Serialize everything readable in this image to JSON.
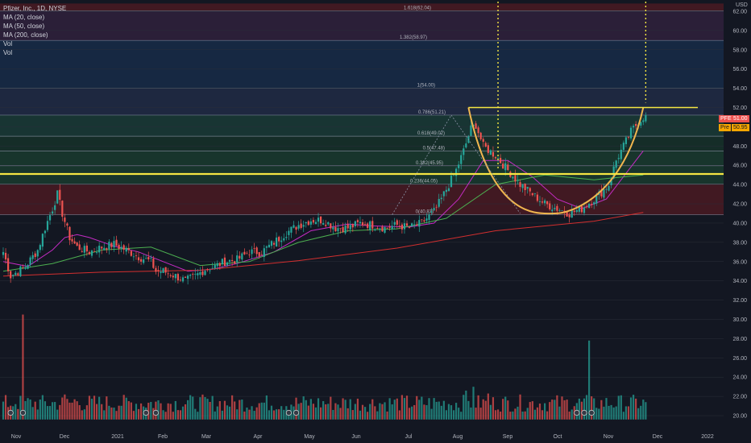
{
  "legend": {
    "title": "Pfizer, Inc., 1D, NYSE",
    "indicators": [
      "MA (20, close)",
      "MA (50, close)",
      "MA (200, close)",
      "Vol",
      "Vol"
    ]
  },
  "axis": {
    "currency": "USD",
    "y_ticks": [
      "62.00",
      "60.00",
      "58.00",
      "56.00",
      "54.00",
      "52.00",
      "50.00",
      "48.00",
      "46.00",
      "44.00",
      "42.00",
      "40.00",
      "38.00",
      "36.00",
      "34.00",
      "32.00",
      "30.00",
      "28.00",
      "26.00",
      "24.00",
      "22.00",
      "20.00"
    ],
    "x_ticks": [
      "Nov",
      "Dec",
      "2021",
      "Feb",
      "Mar",
      "Apr",
      "May",
      "Jun",
      "Jul",
      "Aug",
      "Sep",
      "Oct",
      "Nov",
      "Dec",
      "2022"
    ]
  },
  "badges": {
    "symbol": "PFE",
    "last_price": "51.00",
    "pre_label": "Pre",
    "pre_price": "50.95"
  },
  "colors": {
    "background": "#131722",
    "up": "#26a69a",
    "down": "#ef5350",
    "ma20": "#c42bc4",
    "ma50": "#4caf50",
    "ma200": "#d32f2f",
    "pattern": "#f0b64f",
    "resistance": "#f5e642",
    "event_marker": "#d8d8d8"
  },
  "chart_data": {
    "type": "candlestick",
    "symbol": "PFE",
    "interval": "1D",
    "ylim": [
      19.0,
      63.0
    ],
    "fib_levels": [
      {
        "label": "0(40.87)",
        "value": 40.87
      },
      {
        "label": "0.236(44.05)",
        "value": 44.05
      },
      {
        "label": "0.382(45.95)",
        "value": 45.95
      },
      {
        "label": "0.5(47.48)",
        "value": 47.48
      },
      {
        "label": "0.618(49.02)",
        "value": 49.02
      },
      {
        "label": "0.786(51.21)",
        "value": 51.21
      },
      {
        "label": "1(54.00)",
        "value": 54.0
      },
      {
        "label": "1.382(58.97)",
        "value": 58.97
      },
      {
        "label": "1.618(62.04)",
        "value": 62.04
      }
    ],
    "horizontal_lines": [
      45.1,
      52.0
    ],
    "price_anchors": [
      [
        0,
        37.0
      ],
      [
        3,
        34.5
      ],
      [
        6,
        35.0
      ],
      [
        9,
        35.5
      ],
      [
        14,
        37.2
      ],
      [
        17,
        39.5
      ],
      [
        20,
        41.5
      ],
      [
        22,
        43.0
      ],
      [
        24,
        41.0
      ],
      [
        27,
        38.5
      ],
      [
        30,
        37.5
      ],
      [
        35,
        37.0
      ],
      [
        40,
        37.5
      ],
      [
        45,
        37.8
      ],
      [
        50,
        37.2
      ],
      [
        55,
        36.5
      ],
      [
        60,
        36.0
      ],
      [
        62,
        35.0
      ],
      [
        65,
        35.0
      ],
      [
        70,
        34.5
      ],
      [
        74,
        34.0
      ],
      [
        78,
        34.5
      ],
      [
        82,
        35.2
      ],
      [
        86,
        35.5
      ],
      [
        90,
        36.0
      ],
      [
        95,
        36.2
      ],
      [
        100,
        37.0
      ],
      [
        105,
        37.0
      ],
      [
        110,
        38.0
      ],
      [
        115,
        39.0
      ],
      [
        120,
        39.8
      ],
      [
        125,
        40.3
      ],
      [
        130,
        40.3
      ],
      [
        135,
        39.5
      ],
      [
        140,
        39.5
      ],
      [
        145,
        40.0
      ],
      [
        150,
        39.8
      ],
      [
        155,
        39.5
      ],
      [
        160,
        39.8
      ],
      [
        165,
        39.5
      ],
      [
        170,
        40.0
      ],
      [
        175,
        41.2
      ],
      [
        178,
        42.5
      ],
      [
        181,
        44.0
      ],
      [
        184,
        45.5
      ],
      [
        187,
        47.5
      ],
      [
        190,
        49.8
      ],
      [
        192,
        50.2
      ],
      [
        195,
        48.0
      ],
      [
        200,
        47.0
      ],
      [
        205,
        45.5
      ],
      [
        210,
        44.0
      ],
      [
        215,
        43.0
      ],
      [
        220,
        42.0
      ],
      [
        225,
        41.5
      ],
      [
        230,
        41.0
      ],
      [
        235,
        41.5
      ],
      [
        240,
        42.5
      ],
      [
        243,
        43.2
      ],
      [
        246,
        44.0
      ],
      [
        249,
        46.5
      ],
      [
        252,
        48.0
      ],
      [
        255,
        49.5
      ],
      [
        258,
        50.5
      ],
      [
        260,
        51.0
      ]
    ],
    "moving_averages": {
      "ma20": [
        [
          0,
          36.0
        ],
        [
          10,
          35.5
        ],
        [
          20,
          37.2
        ],
        [
          25,
          38.5
        ],
        [
          30,
          38.8
        ],
        [
          35,
          38.5
        ],
        [
          45,
          37.6
        ],
        [
          55,
          37.0
        ],
        [
          65,
          36.0
        ],
        [
          75,
          35.0
        ],
        [
          85,
          35.2
        ],
        [
          95,
          35.8
        ],
        [
          110,
          37.0
        ],
        [
          125,
          39.2
        ],
        [
          140,
          39.9
        ],
        [
          150,
          39.7
        ],
        [
          165,
          39.6
        ],
        [
          175,
          40.0
        ],
        [
          185,
          42.5
        ],
        [
          195,
          46.5
        ],
        [
          205,
          46.5
        ],
        [
          215,
          44.8
        ],
        [
          225,
          42.5
        ],
        [
          235,
          41.5
        ],
        [
          245,
          42.5
        ],
        [
          260,
          47.5
        ]
      ],
      "ma50": [
        [
          0,
          35.0
        ],
        [
          20,
          35.8
        ],
        [
          40,
          37.2
        ],
        [
          60,
          37.5
        ],
        [
          80,
          35.6
        ],
        [
          100,
          36.0
        ],
        [
          120,
          38.0
        ],
        [
          140,
          39.2
        ],
        [
          160,
          39.4
        ],
        [
          180,
          40.5
        ],
        [
          200,
          44.0
        ],
        [
          220,
          45.0
        ],
        [
          240,
          44.5
        ],
        [
          260,
          45.0
        ]
      ],
      "ma200": [
        [
          0,
          34.5
        ],
        [
          40,
          34.9
        ],
        [
          80,
          35.1
        ],
        [
          120,
          36.1
        ],
        [
          160,
          37.4
        ],
        [
          200,
          39.2
        ],
        [
          240,
          40.2
        ],
        [
          260,
          41.1
        ]
      ]
    },
    "volume": {
      "baseline_price": 19.6,
      "spikes": [
        [
          8,
          30.5
        ],
        [
          238,
          27.8
        ],
        [
          191,
          23.0
        ],
        [
          197,
          22.3
        ],
        [
          25,
          22.2
        ],
        [
          29,
          21.7
        ],
        [
          188,
          22.6
        ],
        [
          240,
          21.8
        ],
        [
          5,
          21.2
        ]
      ]
    },
    "cup_pattern": {
      "start": [
        189,
        52.0
      ],
      "bottom": [
        224,
        41.0
      ],
      "end": [
        260,
        52.0
      ]
    },
    "event_markers_x": [
      3,
      8,
      58,
      62,
      116,
      119,
      233,
      236,
      239
    ]
  }
}
